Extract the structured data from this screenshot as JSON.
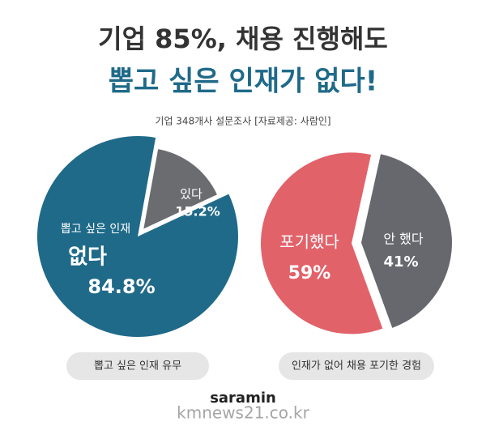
{
  "header": {
    "title_line1": "기업 85%, 채용 진행해도",
    "title_line2": "뽑고 싶은 인재가 없다!",
    "subtitle": "기업 348개사 설문조사  [자료제공: 사람인]"
  },
  "chart_data": [
    {
      "type": "pie",
      "title": "뽑고 싶은 인재 유무",
      "annotations": [
        "뽑고 싶은 인재"
      ],
      "categories": [
        "없다",
        "있다"
      ],
      "values": [
        84.8,
        15.2
      ],
      "value_labels": [
        "84.8%",
        "15.2%"
      ],
      "colors": [
        "#1f6a89",
        "#6b6c70"
      ]
    },
    {
      "type": "pie",
      "title": "인재가 없어  채용 포기한 경험",
      "categories": [
        "포기했다",
        "안 했다"
      ],
      "values": [
        59,
        41
      ],
      "value_labels": [
        "59%",
        "41%"
      ],
      "colors": [
        "#e2626a",
        "#67686e"
      ]
    }
  ],
  "footer": {
    "brand": "saramin",
    "watermark": "kmnews21.co.kr"
  }
}
